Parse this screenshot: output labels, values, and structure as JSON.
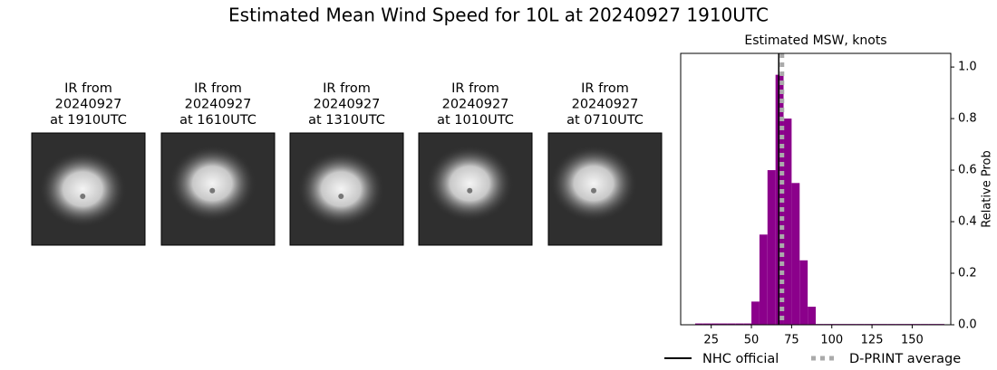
{
  "title": "Estimated Mean Wind Speed for 10L at 20240927 1910UTC",
  "panels": [
    {
      "lines": [
        "IR from",
        "20240927",
        "at 1910UTC"
      ]
    },
    {
      "lines": [
        "IR from",
        "20240927",
        "at 1610UTC"
      ]
    },
    {
      "lines": [
        "IR from",
        "20240927",
        "at 1310UTC"
      ]
    },
    {
      "lines": [
        "IR from",
        "20240927",
        "at 1010UTC"
      ]
    },
    {
      "lines": [
        "IR from",
        "20240927",
        "at 0710UTC"
      ]
    }
  ],
  "chart_data": {
    "type": "histogram",
    "title": "Estimated MSW, knots",
    "y_label": "Relative Prob",
    "bins": [
      15,
      20,
      25,
      30,
      35,
      40,
      45,
      50,
      55,
      60,
      65,
      70,
      75,
      80,
      85,
      90,
      95,
      100,
      105,
      110,
      115,
      120,
      125,
      130,
      135,
      140,
      145,
      150,
      155,
      160,
      165,
      170
    ],
    "values": [
      0.005,
      0.005,
      0.005,
      0.005,
      0.005,
      0.005,
      0.005,
      0.09,
      0.35,
      0.6,
      0.97,
      0.8,
      0.55,
      0.25,
      0.07,
      0.003,
      0.003,
      0.003,
      0.003,
      0.003,
      0.003,
      0.003,
      0.003,
      0.003,
      0.003,
      0.003,
      0.003,
      0.003,
      0.003,
      0.003,
      0.003
    ],
    "color": "#8b008b",
    "xlim": [
      6,
      174
    ],
    "xticks": [
      25,
      50,
      75,
      100,
      125,
      150
    ],
    "ylim": [
      0,
      1.053
    ],
    "yticks": [
      {
        "value": 0,
        "label": "0.0"
      },
      0.2,
      0.4,
      0.6,
      0.8,
      {
        "value": 1,
        "label": "1.0"
      }
    ],
    "reference_lines": [
      {
        "name": "NHC official",
        "value": 67,
        "color": "#000000",
        "style": "solid"
      },
      {
        "name": "D-PRINT average",
        "value": 69,
        "color": "#aaaaaa",
        "style": "dotted"
      }
    ]
  }
}
